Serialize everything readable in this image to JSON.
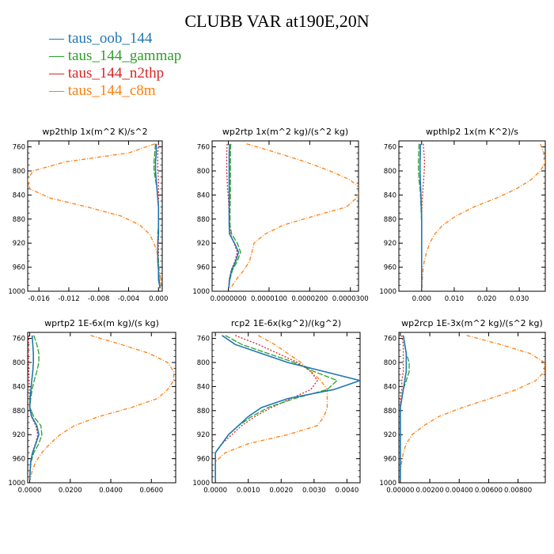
{
  "title": "CLUBB VAR at190E,20N",
  "legend": [
    {
      "label": "taus_oob_144",
      "color": "#1f77b4"
    },
    {
      "label": "taus_144_gammap",
      "color": "#2ca02c"
    },
    {
      "label": "taus_144_n2thp",
      "color": "#d62728"
    },
    {
      "label": "taus_144_c8m",
      "color": "#ff7f0e"
    }
  ],
  "chart_data": [
    {
      "type": "line",
      "title": "wp2thlp  1x(m^2 K)/s^2",
      "y_axis": {
        "range": [
          1000,
          750
        ],
        "ticks": [
          760,
          800,
          840,
          880,
          920,
          960,
          1000
        ]
      },
      "x_axis": {
        "range": [
          -0.0175,
          0.0005
        ],
        "ticks": [
          -0.016,
          -0.012,
          -0.008,
          -0.004,
          0.0
        ],
        "tick_labels": [
          "-0.016",
          "-0.012",
          "-0.008",
          "-0.004",
          "0.000"
        ]
      },
      "pressure": [
        755,
        770,
        785,
        800,
        815,
        830,
        845,
        860,
        875,
        890,
        905,
        920,
        935,
        950,
        965,
        980,
        995
      ],
      "series": [
        {
          "color": "#1f77b4",
          "values": [
            -0.0003,
            -0.0003,
            -0.0004,
            -0.0004,
            -0.0003,
            -0.0002,
            -0.0001,
            0.0,
            0.0,
            0.0,
            0.0,
            -0.0001,
            -0.0001,
            -0.0001,
            0.0,
            0.0,
            0.0002
          ]
        },
        {
          "color": "#2ca02c",
          "values": [
            -0.0004,
            -0.0005,
            -0.0006,
            -0.0006,
            -0.0004,
            -0.0002,
            -0.0001,
            0.0,
            0.0,
            0.0,
            -0.0001,
            -0.0001,
            -0.0001,
            0.0,
            0.0,
            0.0001,
            0.0002
          ]
        },
        {
          "color": "#d62728",
          "values": [
            0.0,
            -0.0001,
            -0.0001,
            -0.0001,
            0.0,
            0.0,
            0.0,
            0.0,
            0.0,
            0.0,
            0.0,
            0.0,
            0.0,
            0.0,
            0.0,
            0.0001,
            0.0002
          ]
        },
        {
          "color": "#ff7f0e",
          "values": [
            -0.0005,
            -0.004,
            -0.0125,
            -0.0168,
            -0.0175,
            -0.0172,
            -0.0145,
            -0.0095,
            -0.005,
            -0.0025,
            -0.0012,
            -0.0006,
            -0.0002,
            0.0,
            0.0001,
            0.0003,
            0.0004
          ]
        }
      ]
    },
    {
      "type": "line",
      "title": "wp2rtp  1x(m^2 kg)/(s^2 kg)",
      "y_axis": {
        "range": [
          1000,
          750
        ],
        "ticks": [
          760,
          800,
          840,
          880,
          920,
          960,
          1000
        ]
      },
      "x_axis": {
        "range": [
          -4e-06,
          3.2e-05
        ],
        "ticks": [
          0.0,
          1e-05,
          2e-05,
          3e-05
        ],
        "tick_labels": [
          "0.0000000",
          "0.0000100",
          "0.0000200",
          "0.0000300"
        ]
      },
      "pressure": [
        755,
        770,
        785,
        800,
        815,
        830,
        845,
        860,
        875,
        890,
        905,
        920,
        935,
        950,
        965,
        980,
        995
      ],
      "series": [
        {
          "color": "#1f77b4",
          "values": [
            3e-07,
            2e-07,
            2e-07,
            2e-07,
            2e-07,
            2e-07,
            2e-07,
            2e-07,
            2e-07,
            2e-07,
            3e-07,
            1.5e-06,
            2.5e-06,
            1.8e-06,
            8e-07,
            3e-07,
            1e-07
          ]
        },
        {
          "color": "#2ca02c",
          "values": [
            6e-07,
            5e-07,
            5e-07,
            5e-07,
            5e-07,
            5e-07,
            5e-07,
            4e-07,
            4e-07,
            4e-07,
            8e-07,
            2.2e-06,
            3e-06,
            2.2e-06,
            1e-06,
            4e-07,
            1e-07
          ]
        },
        {
          "color": "#d62728",
          "values": [
            -3e-07,
            -4e-07,
            -4e-07,
            -4e-07,
            -3e-07,
            -2e-07,
            0.0,
            1e-07,
            2e-07,
            2e-07,
            5e-07,
            1.4e-06,
            2.2e-06,
            1.6e-06,
            7e-07,
            2e-07,
            1e-07
          ]
        },
        {
          "color": "#ff7f0e",
          "values": [
            4.5e-06,
            1.2e-05,
            1.9e-05,
            2.5e-05,
            3e-05,
            3.25e-05,
            3.15e-05,
            2.9e-05,
            2.1e-05,
            1.35e-05,
            9e-06,
            6.3e-06,
            5.8e-06,
            5.2e-06,
            3.8e-06,
            2e-06,
            5e-07
          ]
        }
      ]
    },
    {
      "type": "line",
      "title": "wpthlp2  1x(m K^2)/s",
      "y_axis": {
        "range": [
          1000,
          750
        ],
        "ticks": [
          760,
          800,
          840,
          880,
          920,
          960,
          1000
        ]
      },
      "x_axis": {
        "range": [
          -0.007,
          0.038
        ],
        "ticks": [
          0.0,
          0.01,
          0.02,
          0.03
        ],
        "tick_labels": [
          "0.000",
          "0.010",
          "0.020",
          "0.030"
        ]
      },
      "pressure": [
        755,
        770,
        785,
        800,
        815,
        830,
        845,
        860,
        875,
        890,
        905,
        920,
        935,
        950,
        965,
        980,
        995
      ],
      "series": [
        {
          "color": "#1f77b4",
          "values": [
            -0.0004,
            -0.0004,
            -0.0005,
            -0.0005,
            -0.0004,
            -0.0003,
            -0.0002,
            -0.0001,
            0.0,
            0.0,
            0.0,
            0.0,
            0.0,
            0.0,
            0.0,
            0.0,
            0.0
          ]
        },
        {
          "color": "#2ca02c",
          "values": [
            -0.0008,
            -0.0009,
            -0.001,
            -0.001,
            -0.0008,
            -0.0005,
            -0.0003,
            -0.0002,
            -0.0001,
            0.0,
            0.0,
            0.0,
            0.0,
            0.0,
            0.0,
            0.0,
            0.0
          ]
        },
        {
          "color": "#d62728",
          "values": [
            0.0005,
            0.0007,
            0.0009,
            0.0008,
            0.0006,
            0.0004,
            0.0002,
            0.0001,
            0.0,
            0.0,
            0.0,
            0.0,
            0.0,
            0.0,
            0.0,
            0.0,
            0.0
          ]
        },
        {
          "color": "#ff7f0e",
          "values": [
            0.0365,
            0.0375,
            0.038,
            0.0365,
            0.0335,
            0.029,
            0.023,
            0.016,
            0.0105,
            0.0065,
            0.004,
            0.0025,
            0.0015,
            0.0008,
            0.0004,
            0.0002,
            0.0001
          ]
        }
      ]
    },
    {
      "type": "line",
      "title": "wprtp2  1E-6x(m kg)/(s kg)",
      "y_axis": {
        "range": [
          1000,
          750
        ],
        "ticks": [
          760,
          800,
          840,
          880,
          920,
          960,
          1000
        ]
      },
      "x_axis": {
        "range": [
          -0.001,
          0.072
        ],
        "ticks": [
          0.0,
          0.02,
          0.04,
          0.06
        ],
        "tick_labels": [
          "0.0000",
          "0.0200",
          "0.0400",
          "0.0600"
        ]
      },
      "pressure": [
        755,
        770,
        785,
        800,
        815,
        830,
        845,
        860,
        875,
        890,
        905,
        920,
        935,
        950,
        965,
        980,
        995
      ],
      "series": [
        {
          "color": "#1f77b4",
          "values": [
            0.0012,
            0.0015,
            0.0018,
            0.0018,
            0.0015,
            0.001,
            0.0006,
            0.0002,
            0.0,
            0.001,
            0.0035,
            0.0045,
            0.003,
            0.0014,
            0.0005,
            0.0002,
            0.0
          ]
        },
        {
          "color": "#2ca02c",
          "values": [
            0.002,
            0.0035,
            0.0045,
            0.0045,
            0.0035,
            0.0022,
            0.0012,
            0.0005,
            0.0001,
            0.002,
            0.0055,
            0.006,
            0.0045,
            0.002,
            0.0007,
            0.0002,
            0.0
          ]
        },
        {
          "color": "#d62728",
          "values": [
            -0.0005,
            -0.0006,
            -0.0007,
            -0.0006,
            -0.0005,
            -0.0003,
            -0.0002,
            -0.0001,
            0.0,
            0.0008,
            0.003,
            0.004,
            0.0028,
            0.0013,
            0.0005,
            0.0002,
            0.0
          ]
        },
        {
          "color": "#ff7f0e",
          "values": [
            0.03,
            0.045,
            0.059,
            0.068,
            0.071,
            0.071,
            0.068,
            0.063,
            0.05,
            0.034,
            0.022,
            0.015,
            0.01,
            0.006,
            0.003,
            0.0012,
            0.0003
          ]
        }
      ]
    },
    {
      "type": "line",
      "title": "rcp2  1E-6x(kg^2)/(kg^2)",
      "y_axis": {
        "range": [
          1000,
          750
        ],
        "ticks": [
          760,
          800,
          840,
          880,
          920,
          960,
          1000
        ]
      },
      "x_axis": {
        "range": [
          -0.0001,
          0.0044
        ],
        "ticks": [
          0.0,
          0.001,
          0.002,
          0.003,
          0.004
        ],
        "tick_labels": [
          "0.0000",
          "0.0010",
          "0.0020",
          "0.0030",
          "0.0040"
        ]
      },
      "pressure": [
        755,
        770,
        785,
        800,
        815,
        830,
        845,
        860,
        875,
        890,
        905,
        920,
        935,
        950,
        965,
        980,
        995
      ],
      "series": [
        {
          "color": "#1f77b4",
          "values": [
            0.0002,
            0.0006,
            0.0014,
            0.0022,
            0.0033,
            0.0044,
            0.0036,
            0.0022,
            0.0014,
            0.001,
            0.0007,
            0.0004,
            0.0002,
            0.0,
            0.0,
            0.0,
            0.0
          ]
        },
        {
          "color": "#2ca02c",
          "values": [
            0.0003,
            0.0008,
            0.0016,
            0.0024,
            0.003,
            0.0037,
            0.0034,
            0.0024,
            0.0016,
            0.0011,
            0.0007,
            0.0004,
            0.0002,
            0.0,
            0.0,
            0.0,
            0.0
          ]
        },
        {
          "color": "#d62728",
          "values": [
            0.0006,
            0.0013,
            0.0019,
            0.0025,
            0.0029,
            0.0031,
            0.0029,
            0.0023,
            0.0017,
            0.0012,
            0.0008,
            0.0005,
            0.0002,
            0.0,
            0.0,
            0.0,
            0.0
          ]
        },
        {
          "color": "#ff7f0e",
          "values": [
            0.0013,
            0.0018,
            0.0022,
            0.0026,
            0.0029,
            0.0032,
            0.0034,
            0.0034,
            0.0034,
            0.0033,
            0.0031,
            0.0022,
            0.001,
            0.0003,
            0.0,
            0.0,
            0.0
          ]
        }
      ]
    },
    {
      "type": "line",
      "title": "wp2rcp  1E-3x(m^2 kg)/(s^2 kg)",
      "y_axis": {
        "range": [
          1000,
          750
        ],
        "ticks": [
          760,
          800,
          840,
          880,
          920,
          960,
          1000
        ]
      },
      "x_axis": {
        "range": [
          -0.0001,
          0.00985
        ],
        "ticks": [
          0.0,
          0.002,
          0.004,
          0.006,
          0.008
        ],
        "tick_labels": [
          "0.00000",
          "0.00200",
          "0.00400",
          "0.00600",
          "0.00800"
        ]
      },
      "pressure": [
        755,
        770,
        785,
        800,
        815,
        830,
        845,
        860,
        875,
        890,
        905,
        920,
        935,
        950,
        965,
        980,
        995
      ],
      "series": [
        {
          "color": "#1f77b4",
          "values": [
            0.0002,
            0.0003,
            0.0004,
            0.0004,
            0.0004,
            0.0003,
            0.0002,
            0.0001,
            0.0,
            0.0,
            0.0,
            0.0,
            0.0,
            0.0,
            0.0,
            0.0,
            0.0
          ]
        },
        {
          "color": "#2ca02c",
          "values": [
            0.0002,
            0.0003,
            0.0004,
            0.0006,
            0.0006,
            0.0004,
            0.0002,
            0.0001,
            0.0,
            0.0,
            0.0,
            0.0,
            0.0,
            0.0,
            0.0,
            0.0,
            0.0
          ]
        },
        {
          "color": "#d62728",
          "values": [
            0.0001,
            0.0002,
            0.0002,
            0.0002,
            0.0002,
            0.0001,
            0.0001,
            0.0,
            0.0,
            0.0,
            0.0,
            0.0,
            0.0,
            0.0,
            0.0,
            0.0,
            0.0
          ]
        },
        {
          "color": "#ff7f0e",
          "values": [
            0.0045,
            0.0068,
            0.0088,
            0.0098,
            0.0098,
            0.0092,
            0.0079,
            0.0061,
            0.0042,
            0.0026,
            0.0016,
            0.0008,
            0.0004,
            0.0002,
            0.0001,
            0.0,
            0.0
          ]
        }
      ]
    }
  ]
}
